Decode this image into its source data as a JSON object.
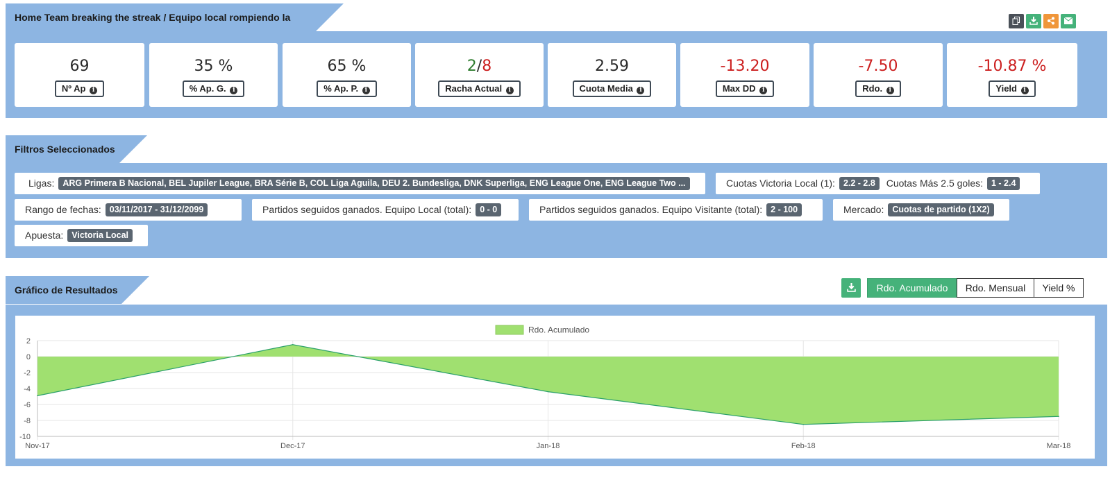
{
  "header": {
    "title": "Home Team breaking the streak / Equipo local rompiendo la racha",
    "buttons": [
      {
        "icon": "copy-icon",
        "color": "#4a5058"
      },
      {
        "icon": "download-icon",
        "color": "#45b27a"
      },
      {
        "icon": "share-icon",
        "color": "#f0963a"
      },
      {
        "icon": "envelope-icon",
        "color": "#45b27a"
      }
    ]
  },
  "stats": [
    {
      "value": "69",
      "label": "Nº Ap"
    },
    {
      "value": "35 %",
      "label": "% Ap. G."
    },
    {
      "value": "65 %",
      "label": "% Ap. P."
    },
    {
      "value_a": "2",
      "sep": "/",
      "value_b": "8",
      "label": "Racha Actual"
    },
    {
      "value": "2.59",
      "label": "Cuota Media"
    },
    {
      "value": "-13.20",
      "label": "Max DD"
    },
    {
      "value": "-7.50",
      "label": "Rdo."
    },
    {
      "value": "-10.87 %",
      "label": "Yield"
    }
  ],
  "filters": {
    "title": "Filtros Seleccionados",
    "ligas_label": "Ligas:",
    "ligas_value": "ARG Primera B Nacional, BEL Jupiler League, BRA Série B, COL Liga Aguila, DEU 2. Bundesliga, DNK Superliga, ENG League One, ENG League Two ...",
    "cuotas_local_label": "Cuotas Victoria Local (1):",
    "cuotas_local_value": "2.2 - 2.8",
    "cuotas_mas_label": "Cuotas Más 2.5 goles:",
    "cuotas_mas_value": "1 - 2.4",
    "rango_label": "Rango de fechas:",
    "rango_value": "03/11/2017 - 31/12/2099",
    "seguidos_local_label": "Partidos seguidos ganados. Equipo Local (total):",
    "seguidos_local_value": "0 - 0",
    "seguidos_visit_label": "Partidos seguidos ganados. Equipo Visitante (total):",
    "seguidos_visit_value": "2 - 100",
    "mercado_label": "Mercado:",
    "mercado_value": "Cuotas de partido (1X2)",
    "apuesta_label": "Apuesta:",
    "apuesta_value": "Victoria Local"
  },
  "results": {
    "title": "Gráfico de Resultados",
    "download_icon": "download-icon",
    "tabs": [
      "Rdo. Acumulado",
      "Rdo. Mensual",
      "Yield %"
    ],
    "active_tab": 0
  },
  "chart_data": {
    "type": "area",
    "x": [
      "Nov-17",
      "Dec-17",
      "Jan-18",
      "Feb-18",
      "Mar-18"
    ],
    "series": [
      {
        "name": "Rdo. Acumulado",
        "values": [
          -4.9,
          1.5,
          -4.4,
          -8.5,
          -7.5
        ]
      }
    ],
    "ylim": [
      -10,
      2
    ],
    "yticks": [
      2,
      0,
      -2,
      -4,
      -6,
      -8,
      -10
    ],
    "grid": true,
    "legend": "top-center",
    "fill_color": "#a0e070",
    "line_color": "#2aa06a"
  }
}
